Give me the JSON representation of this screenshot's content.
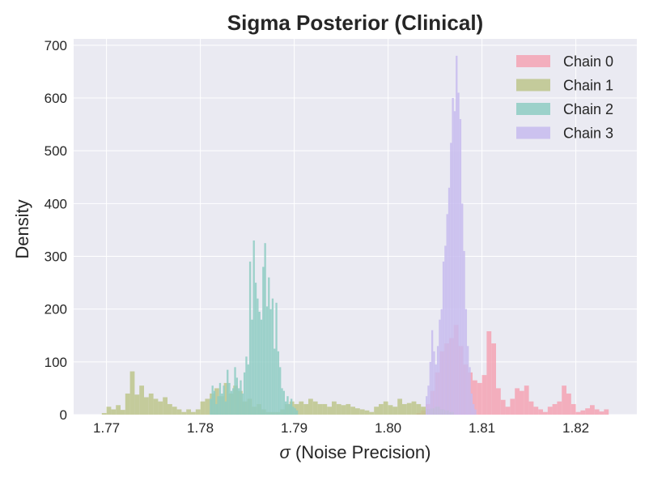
{
  "chart_data": {
    "type": "histogram",
    "title": "Sigma Posterior (Clinical)",
    "xlabel_symbol": "σ",
    "xlabel_rest": " (Noise Precision)",
    "ylabel": "Density",
    "xlim": [
      1.7665,
      1.8265
    ],
    "ylim": [
      0,
      712
    ],
    "xticks": [
      1.77,
      1.78,
      1.79,
      1.8,
      1.81,
      1.82
    ],
    "xtick_labels": [
      "1.77",
      "1.78",
      "1.79",
      "1.80",
      "1.81",
      "1.82"
    ],
    "yticks": [
      0,
      100,
      200,
      300,
      400,
      500,
      600,
      700
    ],
    "ytick_labels": [
      "0",
      "100",
      "200",
      "300",
      "400",
      "500",
      "600",
      "700"
    ],
    "grid": true,
    "legend_position": "top-right",
    "background": "#eaeaf2",
    "series": [
      {
        "name": "Chain 0",
        "color": "#f4a3b4",
        "bins": [
          [
            1.803,
            1.8035,
            3
          ],
          [
            1.8035,
            1.804,
            8
          ],
          [
            1.804,
            1.8045,
            20
          ],
          [
            1.8045,
            1.805,
            45
          ],
          [
            1.805,
            1.8055,
            80
          ],
          [
            1.8055,
            1.806,
            120
          ],
          [
            1.806,
            1.8065,
            135
          ],
          [
            1.8065,
            1.807,
            145
          ],
          [
            1.807,
            1.8075,
            170
          ],
          [
            1.8075,
            1.808,
            130
          ],
          [
            1.808,
            1.8085,
            95
          ],
          [
            1.8085,
            1.809,
            80
          ],
          [
            1.809,
            1.8095,
            65
          ],
          [
            1.8095,
            1.81,
            60
          ],
          [
            1.81,
            1.8105,
            75
          ],
          [
            1.8105,
            1.811,
            158
          ],
          [
            1.811,
            1.8115,
            135
          ],
          [
            1.8115,
            1.812,
            50
          ],
          [
            1.812,
            1.8125,
            28
          ],
          [
            1.8125,
            1.813,
            15
          ],
          [
            1.813,
            1.8135,
            30
          ],
          [
            1.8135,
            1.814,
            50
          ],
          [
            1.814,
            1.8145,
            45
          ],
          [
            1.8145,
            1.815,
            55
          ],
          [
            1.815,
            1.8155,
            25
          ],
          [
            1.8155,
            1.816,
            15
          ],
          [
            1.816,
            1.8165,
            10
          ],
          [
            1.8165,
            1.817,
            5
          ],
          [
            1.817,
            1.8175,
            15
          ],
          [
            1.8175,
            1.818,
            20
          ],
          [
            1.818,
            1.8185,
            25
          ],
          [
            1.8185,
            1.819,
            55
          ],
          [
            1.819,
            1.8195,
            40
          ],
          [
            1.8195,
            1.82,
            20
          ],
          [
            1.82,
            1.8205,
            5
          ],
          [
            1.8205,
            1.821,
            8
          ],
          [
            1.821,
            1.8215,
            12
          ],
          [
            1.8215,
            1.822,
            18
          ],
          [
            1.822,
            1.8225,
            10
          ],
          [
            1.8225,
            1.823,
            6
          ],
          [
            1.823,
            1.8235,
            10
          ]
        ]
      },
      {
        "name": "Chain 1",
        "color": "#bdc58c",
        "bins": [
          [
            1.7695,
            1.77,
            3
          ],
          [
            1.77,
            1.7705,
            15
          ],
          [
            1.7705,
            1.771,
            10
          ],
          [
            1.771,
            1.7715,
            18
          ],
          [
            1.7715,
            1.772,
            9
          ],
          [
            1.772,
            1.7725,
            40
          ],
          [
            1.7725,
            1.773,
            82
          ],
          [
            1.773,
            1.7735,
            38
          ],
          [
            1.7735,
            1.774,
            55
          ],
          [
            1.774,
            1.7745,
            33
          ],
          [
            1.7745,
            1.775,
            40
          ],
          [
            1.775,
            1.7755,
            30
          ],
          [
            1.7755,
            1.776,
            25
          ],
          [
            1.776,
            1.7765,
            33
          ],
          [
            1.7765,
            1.777,
            20
          ],
          [
            1.777,
            1.7775,
            15
          ],
          [
            1.7775,
            1.778,
            10
          ],
          [
            1.778,
            1.7785,
            5
          ],
          [
            1.7785,
            1.779,
            10
          ],
          [
            1.779,
            1.7795,
            5
          ],
          [
            1.7795,
            1.78,
            10
          ],
          [
            1.78,
            1.7805,
            25
          ],
          [
            1.7805,
            1.781,
            30
          ],
          [
            1.781,
            1.7815,
            40
          ],
          [
            1.7815,
            1.782,
            50
          ],
          [
            1.782,
            1.7825,
            35
          ],
          [
            1.7825,
            1.783,
            60
          ],
          [
            1.783,
            1.7835,
            40
          ],
          [
            1.7835,
            1.784,
            55
          ],
          [
            1.784,
            1.7845,
            45
          ],
          [
            1.7845,
            1.785,
            25
          ],
          [
            1.785,
            1.7855,
            30
          ],
          [
            1.7855,
            1.786,
            15
          ],
          [
            1.786,
            1.7865,
            20
          ],
          [
            1.7865,
            1.787,
            10
          ],
          [
            1.787,
            1.7875,
            5
          ],
          [
            1.7875,
            1.788,
            5
          ],
          [
            1.788,
            1.7885,
            5
          ],
          [
            1.7885,
            1.789,
            10
          ],
          [
            1.789,
            1.7895,
            20
          ],
          [
            1.7895,
            1.79,
            25
          ],
          [
            1.79,
            1.7905,
            20
          ],
          [
            1.7905,
            1.791,
            25
          ],
          [
            1.791,
            1.7915,
            20
          ],
          [
            1.7915,
            1.792,
            30
          ],
          [
            1.792,
            1.7925,
            25
          ],
          [
            1.7925,
            1.793,
            20
          ],
          [
            1.793,
            1.7935,
            20
          ],
          [
            1.7935,
            1.794,
            15
          ],
          [
            1.794,
            1.7945,
            25
          ],
          [
            1.7945,
            1.795,
            20
          ],
          [
            1.795,
            1.7955,
            18
          ],
          [
            1.7955,
            1.796,
            20
          ],
          [
            1.796,
            1.7965,
            15
          ],
          [
            1.7965,
            1.797,
            12
          ],
          [
            1.797,
            1.7975,
            10
          ],
          [
            1.7975,
            1.798,
            8
          ],
          [
            1.798,
            1.7985,
            5
          ],
          [
            1.7985,
            1.799,
            15
          ],
          [
            1.799,
            1.7995,
            20
          ],
          [
            1.7995,
            1.8,
            25
          ],
          [
            1.8,
            1.8005,
            18
          ],
          [
            1.8005,
            1.801,
            15
          ],
          [
            1.801,
            1.8015,
            30
          ],
          [
            1.8015,
            1.802,
            20
          ],
          [
            1.802,
            1.8025,
            22
          ],
          [
            1.8025,
            1.803,
            25
          ],
          [
            1.803,
            1.8035,
            20
          ],
          [
            1.8035,
            1.804,
            15
          ],
          [
            1.804,
            1.8045,
            10
          ],
          [
            1.8045,
            1.805,
            12
          ],
          [
            1.805,
            1.8055,
            15
          ],
          [
            1.8055,
            1.806,
            10
          ],
          [
            1.806,
            1.8065,
            8
          ],
          [
            1.8065,
            1.807,
            5
          ]
        ]
      },
      {
        "name": "Chain 2",
        "color": "#8ecdc3",
        "bins": [
          [
            1.781,
            1.7812,
            30
          ],
          [
            1.7812,
            1.7814,
            55
          ],
          [
            1.7814,
            1.7816,
            45
          ],
          [
            1.7816,
            1.7818,
            20
          ],
          [
            1.7818,
            1.782,
            35
          ],
          [
            1.782,
            1.7822,
            60
          ],
          [
            1.7822,
            1.7824,
            40
          ],
          [
            1.7824,
            1.7826,
            55
          ],
          [
            1.7826,
            1.7828,
            25
          ],
          [
            1.7828,
            1.783,
            85
          ],
          [
            1.783,
            1.7832,
            60
          ],
          [
            1.7832,
            1.7834,
            45
          ],
          [
            1.7834,
            1.7836,
            50
          ],
          [
            1.7836,
            1.7838,
            90
          ],
          [
            1.7838,
            1.784,
            70
          ],
          [
            1.784,
            1.7842,
            50
          ],
          [
            1.7842,
            1.7844,
            65
          ],
          [
            1.7844,
            1.7846,
            40
          ],
          [
            1.7846,
            1.7848,
            80
          ],
          [
            1.7848,
            1.785,
            110
          ],
          [
            1.785,
            1.7852,
            95
          ],
          [
            1.7852,
            1.7854,
            290
          ],
          [
            1.7854,
            1.7856,
            180
          ],
          [
            1.7856,
            1.7858,
            330
          ],
          [
            1.7858,
            1.786,
            250
          ],
          [
            1.786,
            1.7862,
            220
          ],
          [
            1.7862,
            1.7864,
            195
          ],
          [
            1.7864,
            1.7866,
            180
          ],
          [
            1.7866,
            1.7868,
            280
          ],
          [
            1.7868,
            1.787,
            325
          ],
          [
            1.787,
            1.7872,
            205
          ],
          [
            1.7872,
            1.7874,
            260
          ],
          [
            1.7874,
            1.7876,
            200
          ],
          [
            1.7876,
            1.7878,
            220
          ],
          [
            1.7878,
            1.788,
            125
          ],
          [
            1.788,
            1.7882,
            212
          ],
          [
            1.7882,
            1.7884,
            120
          ],
          [
            1.7884,
            1.7886,
            90
          ],
          [
            1.7886,
            1.7888,
            50
          ],
          [
            1.7888,
            1.789,
            45
          ],
          [
            1.789,
            1.7892,
            25
          ],
          [
            1.7892,
            1.7894,
            35
          ],
          [
            1.7894,
            1.7896,
            20
          ],
          [
            1.7896,
            1.7898,
            30
          ],
          [
            1.7898,
            1.79,
            15
          ],
          [
            1.79,
            1.7902,
            12
          ],
          [
            1.7902,
            1.7904,
            8
          ]
        ]
      },
      {
        "name": "Chain 3",
        "color": "#c7bbef",
        "bins": [
          [
            1.804,
            1.8042,
            35
          ],
          [
            1.8042,
            1.8044,
            55
          ],
          [
            1.8044,
            1.8046,
            100
          ],
          [
            1.8046,
            1.8048,
            160
          ],
          [
            1.8048,
            1.805,
            120
          ],
          [
            1.805,
            1.8052,
            95
          ],
          [
            1.8052,
            1.8054,
            130
          ],
          [
            1.8054,
            1.8056,
            180
          ],
          [
            1.8056,
            1.8058,
            200
          ],
          [
            1.8058,
            1.806,
            290
          ],
          [
            1.806,
            1.8062,
            320
          ],
          [
            1.8062,
            1.8064,
            380
          ],
          [
            1.8064,
            1.8066,
            430
          ],
          [
            1.8066,
            1.8068,
            515
          ],
          [
            1.8068,
            1.807,
            600
          ],
          [
            1.807,
            1.8072,
            575
          ],
          [
            1.8072,
            1.8074,
            680
          ],
          [
            1.8074,
            1.8076,
            610
          ],
          [
            1.8076,
            1.8078,
            560
          ],
          [
            1.8078,
            1.808,
            400
          ],
          [
            1.808,
            1.8082,
            310
          ],
          [
            1.8082,
            1.8084,
            200
          ],
          [
            1.8084,
            1.8086,
            130
          ],
          [
            1.8086,
            1.8088,
            90
          ],
          [
            1.8088,
            1.809,
            40
          ],
          [
            1.809,
            1.8092,
            20
          ],
          [
            1.8092,
            1.8094,
            10
          ]
        ]
      }
    ]
  }
}
